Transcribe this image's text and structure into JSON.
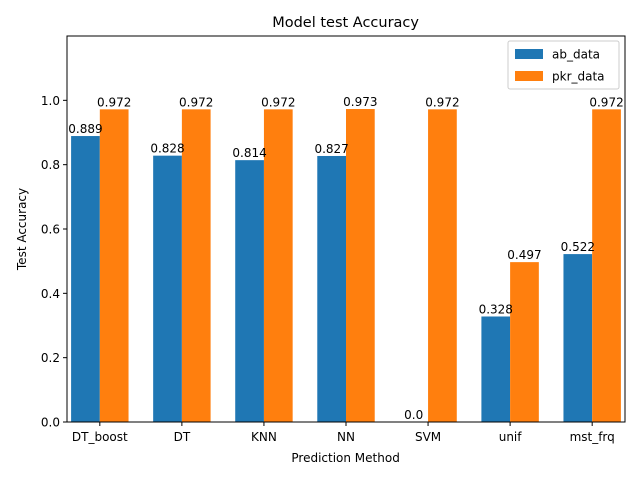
{
  "chart_data": {
    "type": "bar",
    "title": "Model test Accuracy",
    "xlabel": "Prediction Method",
    "ylabel": "Test Accuracy",
    "categories": [
      "DT_boost",
      "DT",
      "KNN",
      "NN",
      "SVM",
      "unif",
      "mst_frq"
    ],
    "series": [
      {
        "name": "ab_data",
        "color": "#1f77b4",
        "values": [
          0.889,
          0.828,
          0.814,
          0.827,
          0.0,
          0.328,
          0.522
        ],
        "labels": [
          "0.889",
          "0.828",
          "0.814",
          "0.827",
          "0.0",
          "0.328",
          "0.522"
        ]
      },
      {
        "name": "pkr_data",
        "color": "#ff7f0e",
        "values": [
          0.972,
          0.972,
          0.972,
          0.973,
          0.972,
          0.497,
          0.972
        ],
        "labels": [
          "0.972",
          "0.972",
          "0.972",
          "0.973",
          "0.972",
          "0.497",
          "0.972"
        ]
      }
    ],
    "ylim": [
      0,
      1.2
    ],
    "yticks": [
      0.0,
      0.2,
      0.4,
      0.6,
      0.8,
      1.0
    ],
    "ytick_labels": [
      "0.0",
      "0.2",
      "0.4",
      "0.6",
      "0.8",
      "1.0"
    ],
    "legend_position": "top-right",
    "grid": false
  }
}
